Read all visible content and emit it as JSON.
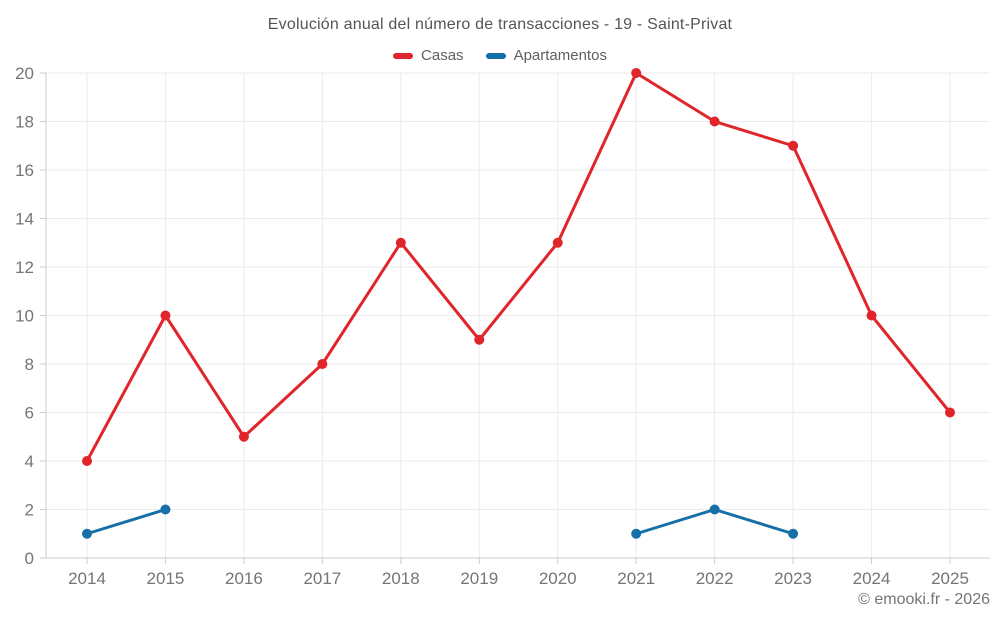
{
  "title": "Evolución anual del número de transacciones - 19 - Saint-Privat",
  "footer": "© emooki.fr - 2026",
  "colors": {
    "casas": "#e0252b",
    "apartamentos": "#176fa8",
    "grid": "#ebebeb",
    "axis": "#cccccc",
    "tick_text": "#757575",
    "title_text": "#555555"
  },
  "chart_data": {
    "type": "line",
    "title": "Evolución anual del número de transacciones - 19 - Saint-Privat",
    "categories": [
      "2014",
      "2015",
      "2016",
      "2017",
      "2018",
      "2019",
      "2020",
      "2021",
      "2022",
      "2023",
      "2024",
      "2025"
    ],
    "series": [
      {
        "name": "Casas",
        "color": "#e0252b",
        "values": [
          4,
          10,
          5,
          8,
          13,
          9,
          13,
          20,
          18,
          17,
          10,
          6
        ]
      },
      {
        "name": "Apartamentos",
        "color": "#176fa8",
        "values": [
          1,
          2,
          null,
          null,
          null,
          null,
          null,
          1,
          2,
          1,
          null,
          null
        ]
      }
    ],
    "xlabel": "",
    "ylabel": "",
    "ylim": [
      0,
      20
    ],
    "yticks": [
      0,
      2,
      4,
      6,
      8,
      10,
      12,
      14,
      16,
      18,
      20
    ],
    "grid": true,
    "legend_position": "top",
    "annotations": [
      "© emooki.fr - 2026"
    ]
  }
}
